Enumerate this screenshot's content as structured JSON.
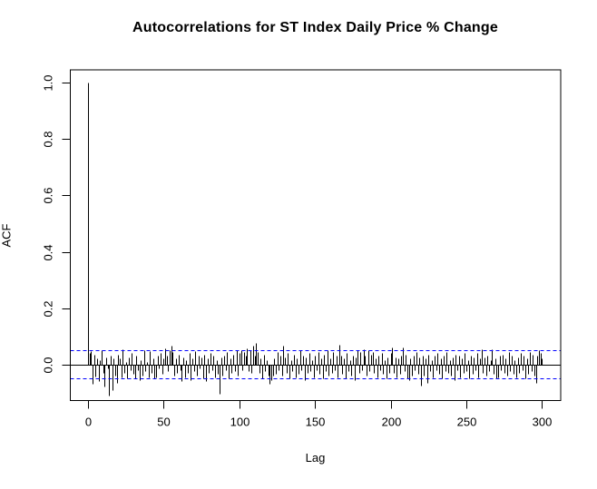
{
  "chart_data": {
    "type": "bar",
    "subtype": "acf-spike-plot",
    "title": "Autocorrelations for ST Index Daily Price % Change",
    "xlabel": "Lag",
    "ylabel": "ACF",
    "x_ticks": [
      0,
      50,
      100,
      150,
      200,
      250,
      300
    ],
    "y_ticks": [
      0.0,
      0.2,
      0.4,
      0.6,
      0.8,
      1.0
    ],
    "xlim": [
      -12,
      312
    ],
    "ylim": [
      -0.127,
      1.048
    ],
    "grid": "off",
    "legend": "none",
    "confidence_bounds": [
      -0.051,
      0.051
    ],
    "colors": {
      "spike": "#000000",
      "confidence_line": "#0000ff",
      "box": "#000000",
      "background": "#ffffff"
    },
    "x": [
      0,
      1,
      2,
      3,
      4,
      5,
      6,
      7,
      8,
      9,
      10,
      11,
      12,
      13,
      14,
      15,
      16,
      17,
      18,
      19,
      20,
      21,
      22,
      23,
      24,
      25,
      26,
      27,
      28,
      29,
      30,
      31,
      32,
      33,
      34,
      35,
      36,
      37,
      38,
      39,
      40,
      41,
      42,
      43,
      44,
      45,
      46,
      47,
      48,
      49,
      50,
      51,
      52,
      53,
      54,
      55,
      56,
      57,
      58,
      59,
      60,
      61,
      62,
      63,
      64,
      65,
      66,
      67,
      68,
      69,
      70,
      71,
      72,
      73,
      74,
      75,
      76,
      77,
      78,
      79,
      80,
      81,
      82,
      83,
      84,
      85,
      86,
      87,
      88,
      89,
      90,
      91,
      92,
      93,
      94,
      95,
      96,
      97,
      98,
      99,
      100,
      101,
      102,
      103,
      104,
      105,
      106,
      107,
      108,
      109,
      110,
      111,
      112,
      113,
      114,
      115,
      116,
      117,
      118,
      119,
      120,
      121,
      122,
      123,
      124,
      125,
      126,
      127,
      128,
      129,
      130,
      131,
      132,
      133,
      134,
      135,
      136,
      137,
      138,
      139,
      140,
      141,
      142,
      143,
      144,
      145,
      146,
      147,
      148,
      149,
      150,
      151,
      152,
      153,
      154,
      155,
      156,
      157,
      158,
      159,
      160,
      161,
      162,
      163,
      164,
      165,
      166,
      167,
      168,
      169,
      170,
      171,
      172,
      173,
      174,
      175,
      176,
      177,
      178,
      179,
      180,
      181,
      182,
      183,
      184,
      185,
      186,
      187,
      188,
      189,
      190,
      191,
      192,
      193,
      194,
      195,
      196,
      197,
      198,
      199,
      200,
      201,
      202,
      203,
      204,
      205,
      206,
      207,
      208,
      209,
      210,
      211,
      212,
      213,
      214,
      215,
      216,
      217,
      218,
      219,
      220,
      221,
      222,
      223,
      224,
      225,
      226,
      227,
      228,
      229,
      230,
      231,
      232,
      233,
      234,
      235,
      236,
      237,
      238,
      239,
      240,
      241,
      242,
      243,
      244,
      245,
      246,
      247,
      248,
      249,
      250,
      251,
      252,
      253,
      254,
      255,
      256,
      257,
      258,
      259,
      260,
      261,
      262,
      263,
      264,
      265,
      266,
      267,
      268,
      269,
      270,
      271,
      272,
      273,
      274,
      275,
      276,
      277,
      278,
      279,
      280,
      281,
      282,
      283,
      284,
      285,
      286,
      287,
      288,
      289,
      290,
      291,
      292,
      293,
      294,
      295,
      296,
      297,
      298,
      299,
      300
    ],
    "acf": [
      1.0,
      0.04,
      0.048,
      -0.07,
      0.035,
      -0.042,
      0.02,
      -0.058,
      0.015,
      0.05,
      -0.03,
      -0.08,
      0.025,
      -0.015,
      -0.112,
      0.03,
      -0.09,
      0.02,
      -0.04,
      -0.065,
      0.035,
      0.02,
      -0.045,
      0.055,
      -0.03,
      0.01,
      -0.05,
      0.025,
      -0.02,
      0.04,
      -0.035,
      -0.05,
      0.03,
      -0.02,
      -0.055,
      0.015,
      -0.04,
      0.05,
      -0.025,
      0.01,
      -0.045,
      0.046,
      -0.03,
      0.02,
      -0.05,
      -0.048,
      0.03,
      -0.015,
      0.04,
      -0.035,
      0.02,
      0.058,
      0.03,
      -0.025,
      0.05,
      0.065,
      0.045,
      -0.04,
      0.02,
      -0.03,
      0.035,
      -0.02,
      -0.06,
      0.025,
      -0.045,
      0.015,
      -0.03,
      0.04,
      -0.055,
      0.02,
      -0.025,
      0.047,
      -0.04,
      0.03,
      -0.015,
      0.025,
      -0.05,
      0.035,
      -0.06,
      0.02,
      -0.03,
      0.04,
      -0.02,
      0.03,
      -0.045,
      0.015,
      -0.035,
      -0.105,
      0.025,
      -0.04,
      0.03,
      -0.02,
      0.045,
      -0.05,
      0.02,
      -0.03,
      0.035,
      -0.025,
      0.05,
      -0.04,
      0.04,
      0.05,
      -0.02,
      0.045,
      0.03,
      0.058,
      -0.025,
      0.05,
      -0.03,
      0.068,
      0.03,
      0.075,
      0.045,
      -0.03,
      0.02,
      -0.05,
      0.035,
      -0.025,
      0.015,
      -0.04,
      -0.068,
      -0.055,
      -0.04,
      0.02,
      -0.035,
      0.045,
      -0.02,
      0.03,
      -0.04,
      0.065,
      0.025,
      -0.03,
      0.04,
      -0.05,
      0.015,
      -0.025,
      0.035,
      -0.045,
      0.02,
      -0.035,
      0.05,
      -0.02,
      0.03,
      -0.055,
      0.025,
      -0.03,
      0.04,
      -0.025,
      0.015,
      -0.045,
      0.03,
      -0.02,
      0.045,
      -0.035,
      0.02,
      -0.05,
      0.035,
      -0.025,
      0.05,
      -0.04,
      0.02,
      -0.03,
      0.045,
      -0.02,
      0.03,
      -0.045,
      0.07,
      0.03,
      -0.035,
      0.02,
      -0.05,
      0.04,
      -0.025,
      0.015,
      -0.04,
      0.03,
      -0.055,
      0.025,
      0.05,
      -0.03,
      0.045,
      -0.02,
      0.055,
      0.03,
      -0.04,
      0.05,
      -0.025,
      0.035,
      0.045,
      -0.03,
      0.02,
      -0.045,
      0.03,
      -0.02,
      0.04,
      -0.035,
      0.015,
      -0.05,
      0.025,
      -0.03,
      0.04,
      0.06,
      -0.03,
      0.025,
      -0.045,
      0.02,
      -0.035,
      0.03,
      0.06,
      -0.025,
      0.035,
      -0.05,
      -0.055,
      0.02,
      -0.04,
      0.03,
      -0.02,
      0.045,
      -0.035,
      0.025,
      -0.075,
      0.03,
      -0.04,
      0.02,
      -0.065,
      0.035,
      -0.025,
      0.015,
      -0.045,
      0.03,
      -0.02,
      0.04,
      -0.035,
      0.02,
      -0.05,
      0.03,
      -0.025,
      0.045,
      -0.03,
      0.015,
      -0.04,
      0.025,
      -0.055,
      0.035,
      -0.02,
      0.03,
      -0.045,
      0.02,
      -0.03,
      0.04,
      -0.025,
      0.015,
      -0.05,
      0.03,
      -0.035,
      0.025,
      -0.02,
      0.04,
      -0.045,
      0.02,
      0.055,
      -0.03,
      0.025,
      -0.04,
      0.03,
      -0.025,
      0.015,
      0.052,
      -0.035,
      0.02,
      -0.05,
      -0.045,
      0.03,
      -0.02,
      0.035,
      -0.03,
      0.02,
      -0.04,
      0.045,
      -0.025,
      0.03,
      -0.035,
      0.015,
      -0.045,
      0.025,
      -0.03,
      0.04,
      -0.02,
      0.03,
      -0.05,
      0.02,
      -0.035,
      0.045,
      -0.025,
      0.035,
      -0.04,
      -0.065,
      0.03,
      0.05,
      0.04,
      0.02
    ]
  }
}
